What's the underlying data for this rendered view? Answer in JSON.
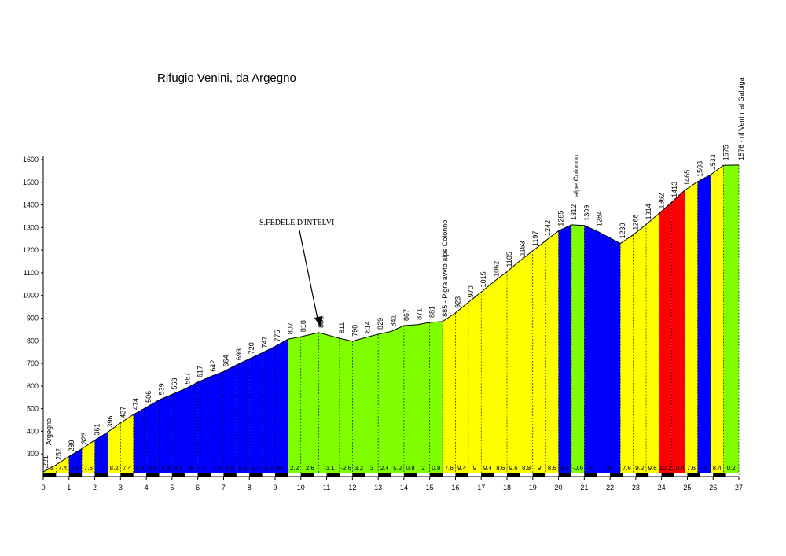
{
  "chart_data": {
    "type": "area",
    "title": "Rifugio Venini, da Argegno",
    "x": [
      0,
      0.5,
      1,
      1.5,
      2,
      2.5,
      3,
      3.5,
      4,
      4.5,
      5,
      5.5,
      6,
      6.5,
      7,
      7.5,
      8,
      8.5,
      9,
      9.5,
      10,
      10.7,
      11.5,
      12,
      12.5,
      13,
      13.5,
      14,
      14.5,
      15,
      15.5,
      16,
      16.5,
      17,
      17.5,
      18,
      18.5,
      19,
      19.5,
      20,
      20.5,
      21,
      21.5,
      22.4,
      22.9,
      23.4,
      23.9,
      24.4,
      24.9,
      25.4,
      25.9,
      26.4,
      27
    ],
    "values": [
      221,
      252,
      289,
      323,
      361,
      396,
      437,
      474,
      506,
      539,
      563,
      587,
      617,
      642,
      664,
      693,
      720,
      747,
      775,
      807,
      818,
      836,
      811,
      798,
      814,
      829,
      841,
      867,
      871,
      881,
      885,
      923,
      970,
      1015,
      1062,
      1105,
      1153,
      1197,
      1242,
      1285,
      1312,
      1309,
      1284,
      1230,
      1268,
      1314,
      1362,
      1413,
      1465,
      1503,
      1533,
      1575,
      1576
    ],
    "value_labels": [
      null,
      null,
      null,
      null,
      null,
      null,
      null,
      null,
      null,
      null,
      null,
      null,
      null,
      null,
      null,
      null,
      null,
      null,
      null,
      null,
      null,
      null,
      null,
      null,
      null,
      null,
      null,
      null,
      null,
      null,
      "885 - Pigra avvio alpe Colonno",
      null,
      null,
      null,
      null,
      null,
      null,
      null,
      null,
      null,
      null,
      null,
      null,
      null,
      null,
      null,
      null,
      null,
      null,
      null,
      null,
      null,
      "1576 - rif Venini al Galbiga"
    ],
    "grades": [
      6.2,
      7.4,
      6.8,
      7.6,
      7.0,
      8.2,
      7.4,
      6.4,
      6.6,
      4.8,
      4.8,
      6.0,
      5.0,
      4.4,
      5.8,
      5.4,
      5.4,
      5.6,
      6.4,
      2.2,
      2.6,
      -3.1,
      -2.6,
      3.2,
      3.0,
      2.4,
      5.2,
      0.8,
      2.0,
      0.8,
      7.6,
      9.4,
      9.0,
      9.4,
      8.6,
      9.6,
      8.8,
      9.0,
      8.6,
      5.4,
      -0.6,
      -5.0,
      -6.0,
      7.6,
      9.2,
      9.6,
      10.2,
      10.4,
      7.6,
      6.0,
      8.4,
      0.2
    ],
    "colors": [
      "#ffff00",
      "#ffff00",
      "#0000ff",
      "#ffff00",
      "#0000ff",
      "#ffff00",
      "#ffff00",
      "#0000ff",
      "#0000ff",
      "#0000ff",
      "#0000ff",
      "#0000ff",
      "#0000ff",
      "#0000ff",
      "#0000ff",
      "#0000ff",
      "#0000ff",
      "#0000ff",
      "#0000ff",
      "#80ff00",
      "#80ff00",
      "#80ff00",
      "#80ff00",
      "#80ff00",
      "#80ff00",
      "#80ff00",
      "#80ff00",
      "#80ff00",
      "#80ff00",
      "#80ff00",
      "#ffff00",
      "#ffff00",
      "#ffff00",
      "#ffff00",
      "#ffff00",
      "#ffff00",
      "#ffff00",
      "#ffff00",
      "#ffff00",
      "#0000ff",
      "#80ff00",
      "#0000ff",
      "#0000ff",
      "#ffff00",
      "#ffff00",
      "#ffff00",
      "#ff0000",
      "#ff0000",
      "#ffff00",
      "#0000ff",
      "#ffff00",
      "#80ff00"
    ],
    "annotations": [
      "Argegno",
      "S.FEDELE D'INTELVI",
      "alpe Colonno"
    ],
    "xlim": [
      0,
      27
    ],
    "xticks": [
      0,
      1,
      2,
      3,
      4,
      5,
      6,
      7,
      8,
      9,
      10,
      11,
      12,
      13,
      14,
      15,
      16,
      17,
      18,
      19,
      20,
      21,
      22,
      23,
      24,
      25,
      26,
      27
    ],
    "ylim": [
      200,
      1600
    ],
    "yticks": [
      300,
      400,
      500,
      600,
      700,
      800,
      900,
      1000,
      1100,
      1200,
      1300,
      1400,
      1500,
      1600
    ]
  }
}
